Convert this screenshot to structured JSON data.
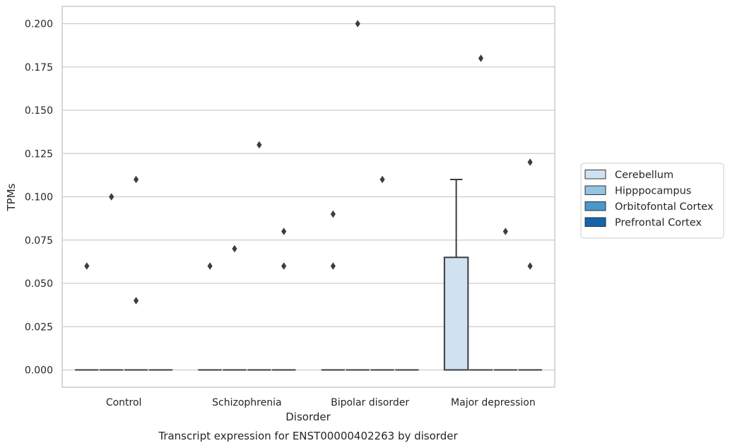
{
  "chart_data": {
    "type": "box",
    "caption": "Transcript expression for ENST00000402263 by disorder",
    "xlabel": "Disorder",
    "ylabel": "TPMs",
    "ylim": [
      -0.01,
      0.21
    ],
    "yticks": [
      0.0,
      0.025,
      0.05,
      0.075,
      0.1,
      0.125,
      0.15,
      0.175,
      0.2
    ],
    "ytick_labels": [
      "0.000",
      "0.025",
      "0.050",
      "0.075",
      "0.100",
      "0.125",
      "0.150",
      "0.175",
      "0.200"
    ],
    "grid": true,
    "legend_position": "right",
    "categories": [
      "Control",
      "Schizophrenia",
      "Bipolar disorder",
      "Major depression"
    ],
    "series": [
      {
        "name": "Cerebellum",
        "color": "#d0e1f2",
        "boxes": [
          {
            "q1": 0,
            "median": 0,
            "q3": 0,
            "whisker_low": 0,
            "whisker_high": 0,
            "outliers": [
              0.06
            ]
          },
          {
            "q1": 0,
            "median": 0,
            "q3": 0,
            "whisker_low": 0,
            "whisker_high": 0,
            "outliers": [
              0.06
            ]
          },
          {
            "q1": 0,
            "median": 0,
            "q3": 0,
            "whisker_low": 0,
            "whisker_high": 0,
            "outliers": [
              0.06,
              0.09
            ]
          },
          {
            "q1": 0,
            "median": 0,
            "q3": 0.065,
            "whisker_low": 0,
            "whisker_high": 0.11,
            "outliers": []
          }
        ]
      },
      {
        "name": "Hipppocampus",
        "color": "#94c4df",
        "boxes": [
          {
            "q1": 0,
            "median": 0,
            "q3": 0,
            "whisker_low": 0,
            "whisker_high": 0,
            "outliers": [
              0.1
            ]
          },
          {
            "q1": 0,
            "median": 0,
            "q3": 0,
            "whisker_low": 0,
            "whisker_high": 0,
            "outliers": [
              0.07
            ]
          },
          {
            "q1": 0,
            "median": 0,
            "q3": 0,
            "whisker_low": 0,
            "whisker_high": 0,
            "outliers": [
              0.2
            ]
          },
          {
            "q1": 0,
            "median": 0,
            "q3": 0,
            "whisker_low": 0,
            "whisker_high": 0,
            "outliers": [
              0.18
            ]
          }
        ]
      },
      {
        "name": "Orbitofontal Cortex",
        "color": "#4a98c9",
        "boxes": [
          {
            "q1": 0,
            "median": 0,
            "q3": 0,
            "whisker_low": 0,
            "whisker_high": 0,
            "outliers": [
              0.11,
              0.04
            ]
          },
          {
            "q1": 0,
            "median": 0,
            "q3": 0,
            "whisker_low": 0,
            "whisker_high": 0,
            "outliers": [
              0.13
            ]
          },
          {
            "q1": 0,
            "median": 0,
            "q3": 0,
            "whisker_low": 0,
            "whisker_high": 0,
            "outliers": [
              0.11
            ]
          },
          {
            "q1": 0,
            "median": 0,
            "q3": 0,
            "whisker_low": 0,
            "whisker_high": 0,
            "outliers": [
              0.08
            ]
          }
        ]
      },
      {
        "name": "Prefrontal Cortex",
        "color": "#1764ab",
        "boxes": [
          {
            "q1": 0,
            "median": 0,
            "q3": 0,
            "whisker_low": 0,
            "whisker_high": 0,
            "outliers": []
          },
          {
            "q1": 0,
            "median": 0,
            "q3": 0,
            "whisker_low": 0,
            "whisker_high": 0,
            "outliers": [
              0.08,
              0.06
            ]
          },
          {
            "q1": 0,
            "median": 0,
            "q3": 0,
            "whisker_low": 0,
            "whisker_high": 0,
            "outliers": []
          },
          {
            "q1": 0,
            "median": 0,
            "q3": 0,
            "whisker_low": 0,
            "whisker_high": 0,
            "outliers": [
              0.12,
              0.06
            ]
          }
        ]
      }
    ]
  }
}
